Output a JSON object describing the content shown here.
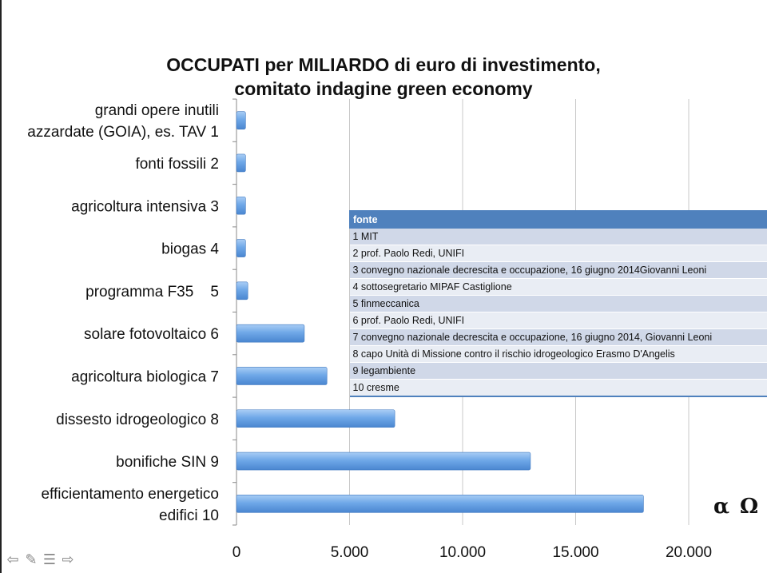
{
  "title_line1": "OCCUPATI per MILIARDO di euro di investimento,",
  "title_line2": "comitato indagine green economy",
  "chart_data": {
    "type": "bar",
    "orientation": "horizontal",
    "title": "OCCUPATI per MILIARDO di euro di investimento, comitato indagine green economy",
    "categories": [
      [
        "grandi opere inutili",
        "azzardate (GOIA), es. TAV 1"
      ],
      [
        "fonti fossili 2"
      ],
      [
        "agricoltura intensiva 3"
      ],
      [
        "biogas 4"
      ],
      [
        "programma F35    5"
      ],
      [
        "solare fotovoltaico 6"
      ],
      [
        "agricoltura biologica 7"
      ],
      [
        "dissesto idrogeologico 8"
      ],
      [
        "bonifiche SIN 9"
      ],
      [
        "efficientamento energetico",
        "edifici 10"
      ]
    ],
    "values": [
      400,
      400,
      400,
      400,
      500,
      3000,
      4000,
      7000,
      13000,
      18000
    ],
    "xlim": [
      0,
      20000
    ],
    "xticks": [
      0,
      5000,
      10000,
      15000,
      20000
    ],
    "xtick_labels": [
      "0",
      "5.000",
      "10.000",
      "15.000",
      "20.000"
    ],
    "grid": "vertical",
    "bar_color": "#6fa8e8"
  },
  "source_table": {
    "header": "fonte",
    "rows": [
      "1 MIT",
      "2 prof. Paolo Redi, UNIFI",
      "3 convegno nazionale decrescita e occupazione, 16 giugno 2014Giovanni Leoni",
      "4 sottosegretario MIPAF Castiglione",
      "5 finmeccanica",
      "6 prof. Paolo Redi, UNIFI",
      "7 convegno nazionale decrescita e occupazione, 16 giugno 2014, Giovanni Leoni",
      "8 capo Unità di Missione contro il rischio idrogeologico Erasmo D'Angelis",
      "9 legambiente",
      "10 cresme"
    ]
  },
  "logo_text": "α Ω",
  "nav_icons": [
    "arrow-left-icon",
    "pencil-icon",
    "menu-icon",
    "arrow-right-icon"
  ]
}
